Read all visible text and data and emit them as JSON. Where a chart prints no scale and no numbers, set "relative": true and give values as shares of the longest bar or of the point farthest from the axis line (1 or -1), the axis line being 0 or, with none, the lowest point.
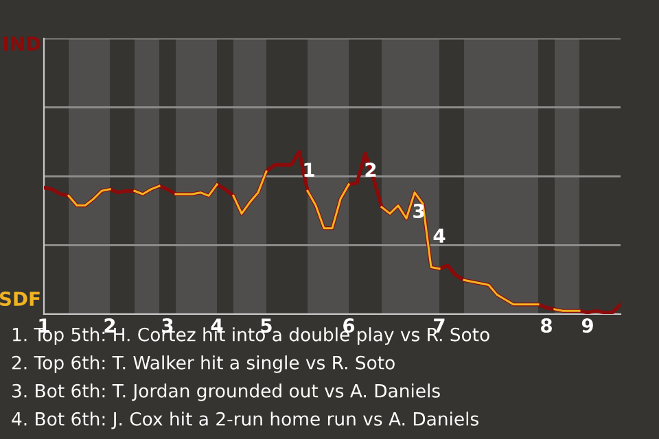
{
  "chart_data": {
    "type": "line",
    "relative": true,
    "categories": [
      "1",
      null,
      null,
      null,
      null,
      null,
      null,
      null,
      "2",
      null,
      null,
      null,
      null,
      null,
      null,
      "3",
      null,
      null,
      null,
      null,
      null,
      "4",
      null,
      null,
      null,
      null,
      null,
      "5",
      null,
      null,
      null,
      null,
      null,
      null,
      null,
      null,
      null,
      "6",
      null,
      null,
      null,
      null,
      null,
      null,
      null,
      null,
      null,
      null,
      "7",
      null,
      null,
      null,
      null,
      null,
      null,
      null,
      null,
      null,
      null,
      null,
      null,
      "8",
      null,
      null,
      null,
      null,
      "9",
      null,
      null,
      null,
      null
    ],
    "marker": "none",
    "line_style": "solid",
    "grid": "y",
    "series": [
      {
        "color": "#8b0a0a",
        "values": [
          0.78,
          0.77,
          0.74,
          0.73,
          0.67,
          0.67,
          0.71,
          0.76,
          0.77,
          0.75,
          0.76,
          0.76,
          0.74,
          0.77,
          0.79,
          0.77,
          0.74,
          0.74,
          0.74,
          0.75,
          0.73,
          0.8,
          0.77,
          0.73,
          0.62,
          0.69,
          0.75,
          0.88,
          0.92,
          0.92,
          0.92,
          1,
          0.76,
          0.67,
          0.53,
          0.53,
          0.71,
          0.8,
          0.81,
          0.99,
          0.84,
          0.66,
          0.62,
          0.67,
          0.59,
          0.75,
          0.68,
          0.29,
          0.28,
          0.3,
          0.24,
          0.21,
          0.2,
          0.19,
          0.18,
          0.12,
          0.09,
          0.06,
          0.06,
          0.06,
          0.06,
          0.04,
          0.03,
          0.02,
          0.02,
          0.02,
          0.01,
          0.02,
          0.01,
          0.01,
          0.06
        ],
        "colors": [
          "#8b0a0a",
          "#8b0a0a",
          "#8b0a0a",
          "#f0b323",
          "#f0b323",
          "#f0b323",
          "#f0b323",
          "#f0b323",
          "#8b0a0a",
          "#8b0a0a",
          "#8b0a0a",
          "#f0b323",
          "#f0b323",
          "#f0b323",
          "#8b0a0a",
          "#8b0a0a",
          "#f0b323",
          "#f0b323",
          "#f0b323",
          "#f0b323",
          "#f0b323",
          "#8b0a0a",
          "#8b0a0a",
          "#f0b323",
          "#f0b323",
          "#f0b323",
          "#f0b323",
          "#8b0a0a",
          "#8b0a0a",
          "#8b0a0a",
          "#8b0a0a",
          "#8b0a0a",
          "#f0b323",
          "#f0b323",
          "#f0b323",
          "#f0b323",
          "#f0b323",
          "#8b0a0a",
          "#8b0a0a",
          "#8b0a0a",
          "#8b0a0a",
          "#f0b323",
          "#f0b323",
          "#f0b323",
          "#f0b323",
          "#f0b323",
          "#f0b323",
          "#f0b323",
          "#8b0a0a",
          "#8b0a0a",
          "#8b0a0a",
          "#f0b323",
          "#f0b323",
          "#f0b323",
          "#f0b323",
          "#f0b323",
          "#f0b323",
          "#f0b323",
          "#f0b323",
          "#f0b323",
          "#8b0a0a",
          "#8b0a0a",
          "#f0b323",
          "#f0b323",
          "#f0b323",
          "#8b0a0a",
          "#8b0a0a",
          "#8b0a0a",
          "#8b0a0a",
          "#8b0a0a",
          "#8b0a0a"
        ]
      }
    ],
    "ylim": [
      0,
      1.7
    ],
    "annotations": [
      "IND",
      "SDF",
      "1",
      "2",
      "3",
      "4",
      "1. Top 5th: H. Cortez hit into a double play vs R. Soto",
      "2. Top 6th: T. Walker hit a single vs R. Soto",
      "3. Bot 6th: T. Jordan grounded out vs A. Daniels",
      "4. Bot 6th: J. Cox hit a 2-run home run vs A. Daniels"
    ]
  }
}
